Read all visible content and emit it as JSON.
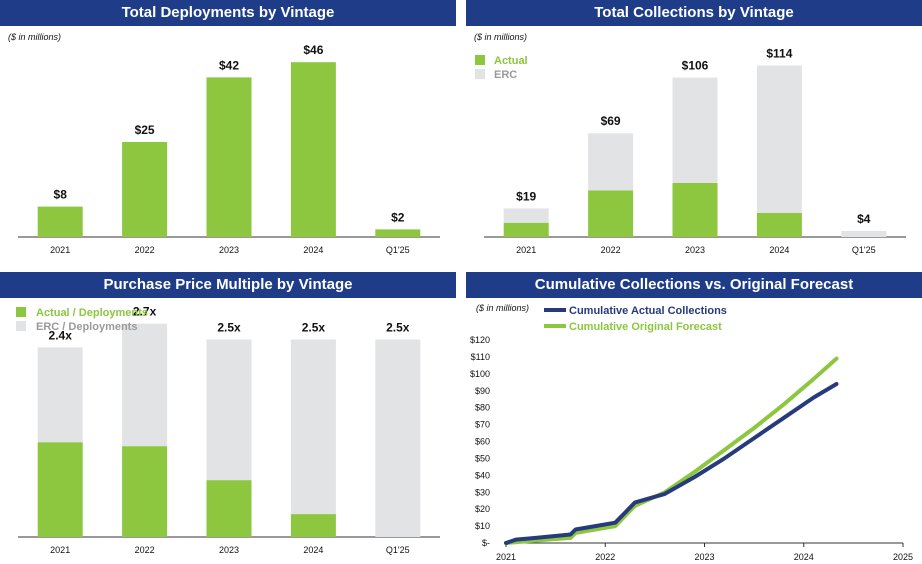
{
  "colors": {
    "header": "#1f3c88",
    "green": "#8dc63f",
    "grey": "#e2e3e5",
    "navy": "#273a7b"
  },
  "panels": {
    "deployments": {
      "title": "Total Deployments by Vintage",
      "unit_note": "($ in millions)"
    },
    "collections": {
      "title": "Total Collections by Vintage",
      "unit_note": "($ in millions)"
    },
    "multiple": {
      "title": "Purchase Price Multiple by Vintage"
    },
    "cumulative": {
      "title": "Cumulative Collections vs. Original Forecast",
      "unit_note": "($ in millions)"
    }
  },
  "chart_data": [
    {
      "id": "deployments",
      "type": "bar",
      "title": "Total Deployments by Vintage",
      "categories": [
        "2021",
        "2022",
        "2023",
        "2024",
        "Q1'25"
      ],
      "values": [
        8,
        25,
        42,
        46,
        2
      ],
      "labels": [
        "$8",
        "$25",
        "$42",
        "$46",
        "$2"
      ],
      "ylim": [
        0,
        50
      ]
    },
    {
      "id": "collections",
      "type": "bar",
      "stacked": true,
      "title": "Total Collections by Vintage",
      "categories": [
        "2021",
        "2022",
        "2023",
        "2024",
        "Q1'25"
      ],
      "legend": [
        "Actual",
        "ERC"
      ],
      "series": [
        {
          "name": "Actual",
          "values": [
            9.5,
            31,
            36,
            16,
            0
          ]
        },
        {
          "name": "ERC",
          "values": [
            9.5,
            38,
            70,
            98,
            4
          ]
        }
      ],
      "labels": [
        "$19",
        "$69",
        "$106",
        "$114",
        "$4"
      ],
      "ylim": [
        0,
        125
      ]
    },
    {
      "id": "multiple",
      "type": "bar",
      "stacked": true,
      "title": "Purchase Price Multiple by Vintage",
      "categories": [
        "2021",
        "2022",
        "2023",
        "2024",
        "Q1'25"
      ],
      "legend": [
        "Actual / Deployments",
        "ERC / Deployments"
      ],
      "series": [
        {
          "name": "Actual / Deployments",
          "values": [
            1.2,
            1.15,
            0.72,
            0.29,
            0
          ]
        },
        {
          "name": "ERC / Deployments",
          "values": [
            1.2,
            1.55,
            1.78,
            2.21,
            2.5
          ]
        }
      ],
      "labels": [
        "2.4x",
        "2.7x",
        "2.5x",
        "2.5x",
        "2.5x"
      ],
      "ylim": [
        0,
        3.0
      ]
    },
    {
      "id": "cumulative",
      "type": "line",
      "title": "Cumulative Collections vs. Original Forecast",
      "xlim": [
        2021,
        2025
      ],
      "xticks": [
        "2021",
        "2022",
        "2023",
        "2024",
        "2025"
      ],
      "ylim": [
        0,
        120
      ],
      "yticks": [
        "$-",
        "$10",
        "$20",
        "$30",
        "$40",
        "$50",
        "$60",
        "$70",
        "$80",
        "$90",
        "$100",
        "$110",
        "$120"
      ],
      "series": [
        {
          "name": "Cumulative Actual Collections",
          "x": [
            2021,
            2021.1,
            2021.3,
            2021.65,
            2021.7,
            2021.9,
            2022.1,
            2022.2,
            2022.3,
            2022.6,
            2022.9,
            2023.2,
            2023.5,
            2023.8,
            2024.1,
            2024.33
          ],
          "y": [
            0,
            2,
            3,
            5,
            8,
            10,
            12,
            18,
            24,
            29,
            39,
            50,
            62,
            74,
            86,
            94
          ]
        },
        {
          "name": "Cumulative Original Forecast",
          "x": [
            2021,
            2021.3,
            2021.65,
            2021.7,
            2021.9,
            2022.1,
            2022.2,
            2022.3,
            2022.6,
            2022.9,
            2023.2,
            2023.5,
            2023.8,
            2024.1,
            2024.33
          ],
          "y": [
            0,
            1.5,
            3,
            6,
            8,
            10,
            16,
            22,
            30,
            42,
            55,
            68,
            82,
            97,
            109
          ]
        }
      ]
    }
  ]
}
